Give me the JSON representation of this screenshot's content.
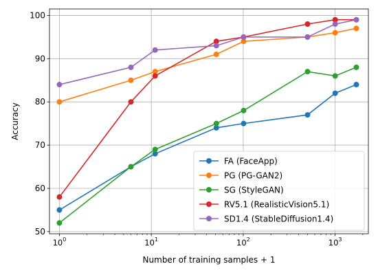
{
  "chart_data": {
    "type": "line",
    "title": "",
    "xlabel": "Number of training samples + 1",
    "ylabel": "Accuracy",
    "xscale": "log",
    "xlim": [
      0.78,
      2300
    ],
    "ylim": [
      49.5,
      101.5
    ],
    "grid": true,
    "legend_position": "lower-right",
    "x_ticks": [
      {
        "value": 1,
        "base": "10",
        "exp": "0"
      },
      {
        "value": 10,
        "base": "10",
        "exp": "1"
      },
      {
        "value": 100,
        "base": "10",
        "exp": "2"
      },
      {
        "value": 1000,
        "base": "10",
        "exp": "3"
      }
    ],
    "y_ticks": [
      50,
      60,
      70,
      80,
      90,
      100
    ],
    "x": [
      1,
      6,
      11,
      51,
      101,
      501,
      1001,
      1701
    ],
    "series": [
      {
        "name": "FA (FaceApp)",
        "color": "#1f77b4",
        "values": [
          55,
          65,
          68,
          74,
          75,
          77,
          82,
          84
        ]
      },
      {
        "name": "PG (PG-GAN2)",
        "color": "#ff7f0e",
        "values": [
          80,
          85,
          87,
          91,
          94,
          95,
          96,
          97
        ]
      },
      {
        "name": "SG (StyleGAN)",
        "color": "#2ca02c",
        "values": [
          52,
          65,
          69,
          75,
          78,
          87,
          86,
          88
        ]
      },
      {
        "name": "RV5.1 (RealisticVision5.1)",
        "color": "#d62728",
        "values": [
          58,
          80,
          86,
          94,
          95,
          98,
          99,
          99
        ]
      },
      {
        "name": "SD1.4 (StableDiffusion1.4)",
        "color": "#9467bd",
        "values": [
          84,
          88,
          92,
          93,
          95,
          95,
          98,
          99
        ]
      }
    ]
  }
}
